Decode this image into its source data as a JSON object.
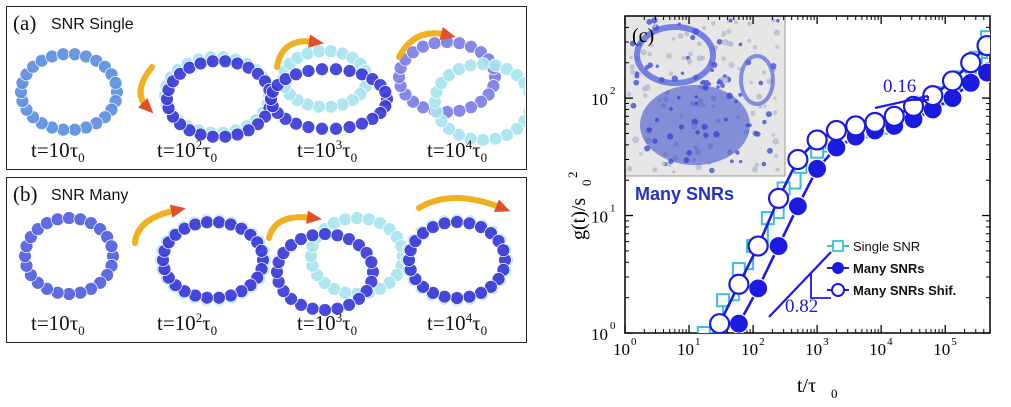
{
  "panel_a": {
    "label": "(a)",
    "title": "SNR  Single",
    "times": [
      {
        "base": "t=10",
        "exp": "",
        "tau": "τ",
        "sub": "0"
      },
      {
        "base": "t=10",
        "exp": "2",
        "tau": "τ",
        "sub": "0"
      },
      {
        "base": "t=10",
        "exp": "3",
        "tau": "τ",
        "sub": "0"
      },
      {
        "base": "t=10",
        "exp": "4",
        "tau": "τ",
        "sub": "0"
      }
    ]
  },
  "panel_b": {
    "label": "(b)",
    "title": "SNR  Many",
    "times": [
      {
        "base": "t=10",
        "exp": "",
        "tau": "τ",
        "sub": "0"
      },
      {
        "base": "t=10",
        "exp": "2",
        "tau": "τ",
        "sub": "0"
      },
      {
        "base": "t=10",
        "exp": "3",
        "tau": "τ",
        "sub": "0"
      },
      {
        "base": "t=10",
        "exp": "4",
        "tau": "τ",
        "sub": "0"
      }
    ]
  },
  "colors": {
    "light_ring": "#a8e4ee",
    "dark_ring": "#3a3ad8",
    "arrow": "#f0b020",
    "series_single": "#3bbde0",
    "series_many": "#1a1ae0",
    "inset_text": "#2330d0"
  },
  "chart_data": {
    "type": "line",
    "panel_label": "(c)",
    "xlabel": "t/τ",
    "xlabel_sub": "0",
    "ylabel": "g(t)/s",
    "ylabel_sub": "0",
    "ylabel_sup": "2",
    "xscale": "log",
    "yscale": "log",
    "xlim": [
      1,
      500000
    ],
    "ylim": [
      1,
      500
    ],
    "xticks": [
      {
        "v": 1,
        "t": "10",
        "e": "0"
      },
      {
        "v": 10,
        "t": "10",
        "e": "1"
      },
      {
        "v": 100,
        "t": "10",
        "e": "2"
      },
      {
        "v": 1000,
        "t": "10",
        "e": "3"
      },
      {
        "v": 10000,
        "t": "10",
        "e": "4"
      },
      {
        "v": 100000,
        "t": "10",
        "e": "5"
      }
    ],
    "yticks": [
      {
        "v": 1,
        "t": "10",
        "e": "0"
      },
      {
        "v": 10,
        "t": "10",
        "e": "1"
      },
      {
        "v": 100,
        "t": "10",
        "e": "2"
      }
    ],
    "series": [
      {
        "name": "Single SNR",
        "marker": "open-square",
        "style": "step",
        "x": [
          17,
          34,
          60,
          100,
          170,
          300,
          550,
          1000,
          1700,
          3000,
          5500,
          10000,
          17000,
          30000,
          55000,
          100000,
          170000,
          300000,
          450000
        ],
        "y": [
          1.0,
          1.9,
          3.5,
          5.5,
          9.5,
          17,
          26,
          35,
          42,
          47,
          52,
          56,
          62,
          72,
          88,
          110,
          150,
          220,
          330
        ]
      },
      {
        "name": "Many  SNRs",
        "marker": "filled-circle",
        "x": [
          60,
          120,
          250,
          500,
          1000,
          2000,
          4000,
          8000,
          16000,
          32000,
          64000,
          130000,
          250000,
          450000
        ],
        "y": [
          1.2,
          2.4,
          5.5,
          12,
          25,
          38,
          47,
          53,
          58,
          66,
          80,
          100,
          135,
          165
        ]
      },
      {
        "name": "Many  SNRs  Shif.",
        "marker": "open-circle",
        "x": [
          30,
          60,
          120,
          250,
          500,
          1000,
          2000,
          4000,
          8000,
          16000,
          32000,
          64000,
          130000,
          250000,
          450000
        ],
        "y": [
          1.2,
          2.6,
          5.5,
          14,
          30,
          44,
          53,
          58,
          62,
          70,
          85,
          105,
          140,
          200,
          280
        ]
      }
    ],
    "annotations": [
      {
        "text": "0.16",
        "x": 30000,
        "y": 160
      },
      {
        "text": "0.82",
        "x": 1100,
        "y": 1.9
      }
    ],
    "inset_label": "Many  SNRs"
  }
}
